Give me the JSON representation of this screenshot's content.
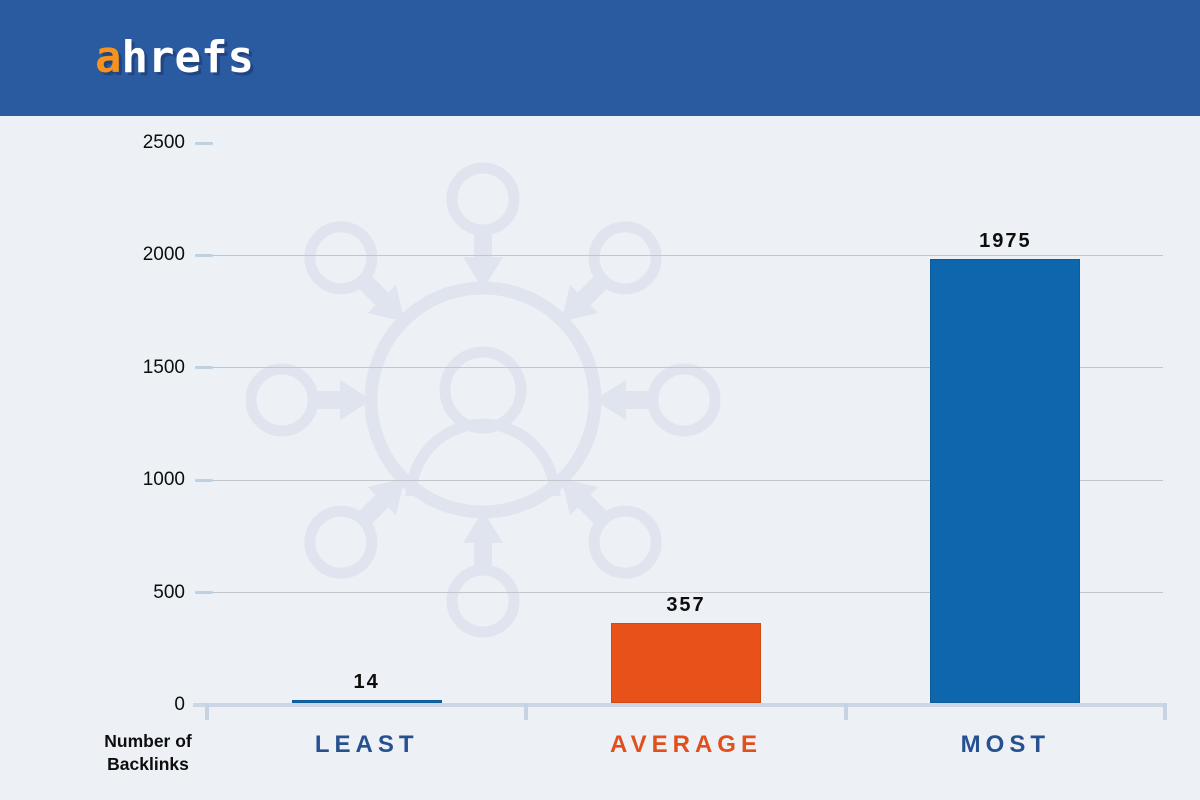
{
  "header": {
    "brand_first": "a",
    "brand_rest": "hrefs",
    "bg_color": "#2a5aa0",
    "brand_accent_color": "#f6921e"
  },
  "chart_data": {
    "type": "bar",
    "title": "",
    "categories": [
      "LEAST",
      "AVERAGE",
      "MOST"
    ],
    "values": [
      14,
      357,
      1975
    ],
    "series": [
      {
        "name": "Number of Backlinks",
        "values": [
          14,
          357,
          1975
        ]
      }
    ],
    "value_labels": [
      "14",
      "357",
      "1975"
    ],
    "bar_colors": [
      "#0e67ad",
      "#e8521a",
      "#0e67ad"
    ],
    "category_label_colors": [
      "#27508f",
      "#e0501c",
      "#27508f"
    ],
    "value_label_color": "#0d0d0d",
    "ylabel": "Number of Backlinks",
    "ylabel_lines": [
      "Number of",
      "Backlinks"
    ],
    "yticks": [
      0,
      500,
      1000,
      1500,
      2000,
      2500
    ],
    "gridline_yticks": [
      500,
      1000,
      1500,
      2000
    ],
    "ylim": [
      0,
      2500
    ],
    "grid": true,
    "legend": false,
    "watermark_icon": "people-network-hub-icon"
  },
  "colors": {
    "page_bg": "#edf1f6",
    "gridline": "#c3c6cb",
    "axis_line": "#cbd7e5",
    "ytick_mark": "#bdd1e4",
    "watermark": "#dfe4ee"
  }
}
